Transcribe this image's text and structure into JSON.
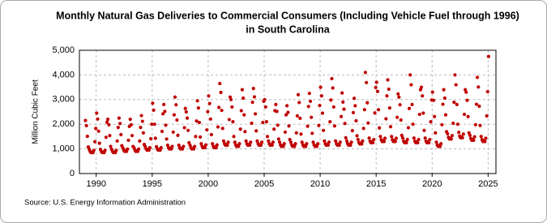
{
  "chart_data": {
    "type": "scatter",
    "title": [
      "Monthly Natural Gas Deliveries to Commercial Consumers (Including Vehicle Fuel through 1996)",
      "in South Carolina"
    ],
    "ylabel": "Million Cubic Feet",
    "source": "Source: U.S. Energy Information Administration",
    "xlim": [
      1988.5,
      2025.7
    ],
    "xticks": [
      1990,
      1995,
      2000,
      2005,
      2010,
      2015,
      2020,
      2025
    ],
    "ylim": [
      0,
      5000
    ],
    "yticks": [
      0,
      {
        "value": 1000,
        "label": "1,000"
      },
      {
        "value": 2000,
        "label": "2,000"
      },
      {
        "value": 3000,
        "label": "3,000"
      },
      {
        "value": 4000,
        "label": "4,000"
      },
      {
        "value": 5000,
        "label": "5,000"
      }
    ],
    "grid": true,
    "color": "#c00000",
    "x": [
      1989.04,
      1989.13,
      1989.21,
      1989.29,
      1989.38,
      1989.46,
      1989.54,
      1989.63,
      1989.71,
      1989.79,
      1989.88,
      1989.96,
      1990.04,
      1990.13,
      1990.21,
      1990.29,
      1990.38,
      1990.46,
      1990.54,
      1990.63,
      1990.71,
      1990.79,
      1990.88,
      1990.96,
      1991.04,
      1991.13,
      1991.21,
      1991.29,
      1991.38,
      1991.46,
      1991.54,
      1991.63,
      1991.71,
      1991.79,
      1991.88,
      1991.96,
      1992.04,
      1992.13,
      1992.21,
      1992.29,
      1992.38,
      1992.46,
      1992.54,
      1992.63,
      1992.71,
      1992.79,
      1992.88,
      1992.96,
      1993.04,
      1993.13,
      1993.21,
      1993.29,
      1993.38,
      1993.46,
      1993.54,
      1993.63,
      1993.71,
      1993.79,
      1993.88,
      1993.96,
      1994.04,
      1994.13,
      1994.21,
      1994.29,
      1994.38,
      1994.46,
      1994.54,
      1994.63,
      1994.71,
      1994.79,
      1994.88,
      1994.96,
      1995.04,
      1995.13,
      1995.21,
      1995.29,
      1995.38,
      1995.46,
      1995.54,
      1995.63,
      1995.71,
      1995.79,
      1995.88,
      1995.96,
      1996.04,
      1996.13,
      1996.21,
      1996.29,
      1996.38,
      1996.46,
      1996.54,
      1996.63,
      1996.71,
      1996.79,
      1996.88,
      1996.96,
      1997.04,
      1997.13,
      1997.21,
      1997.29,
      1997.38,
      1997.46,
      1997.54,
      1997.63,
      1997.71,
      1997.79,
      1997.88,
      1997.96,
      1998.04,
      1998.13,
      1998.21,
      1998.29,
      1998.38,
      1998.46,
      1998.54,
      1998.63,
      1998.71,
      1998.79,
      1998.88,
      1998.96,
      1999.04,
      1999.13,
      1999.21,
      1999.29,
      1999.38,
      1999.46,
      1999.54,
      1999.63,
      1999.71,
      1999.79,
      1999.88,
      1999.96,
      2000.04,
      2000.13,
      2000.21,
      2000.29,
      2000.38,
      2000.46,
      2000.54,
      2000.63,
      2000.71,
      2000.79,
      2000.88,
      2000.96,
      2001.04,
      2001.13,
      2001.21,
      2001.29,
      2001.38,
      2001.46,
      2001.54,
      2001.63,
      2001.71,
      2001.79,
      2001.88,
      2001.96,
      2002.04,
      2002.13,
      2002.21,
      2002.29,
      2002.38,
      2002.46,
      2002.54,
      2002.63,
      2002.71,
      2002.79,
      2002.88,
      2002.96,
      2003.04,
      2003.13,
      2003.21,
      2003.29,
      2003.38,
      2003.46,
      2003.54,
      2003.63,
      2003.71,
      2003.79,
      2003.88,
      2003.96,
      2004.04,
      2004.13,
      2004.21,
      2004.29,
      2004.38,
      2004.46,
      2004.54,
      2004.63,
      2004.71,
      2004.79,
      2004.88,
      2004.96,
      2005.04,
      2005.13,
      2005.21,
      2005.29,
      2005.38,
      2005.46,
      2005.54,
      2005.63,
      2005.71,
      2005.79,
      2005.88,
      2005.96,
      2006.04,
      2006.13,
      2006.21,
      2006.29,
      2006.38,
      2006.46,
      2006.54,
      2006.63,
      2006.71,
      2006.79,
      2006.88,
      2006.96,
      2007.04,
      2007.13,
      2007.21,
      2007.29,
      2007.38,
      2007.46,
      2007.54,
      2007.63,
      2007.71,
      2007.79,
      2007.88,
      2007.96,
      2008.04,
      2008.13,
      2008.21,
      2008.29,
      2008.38,
      2008.46,
      2008.54,
      2008.63,
      2008.71,
      2008.79,
      2008.88,
      2008.96,
      2009.04,
      2009.13,
      2009.21,
      2009.29,
      2009.38,
      2009.46,
      2009.54,
      2009.63,
      2009.71,
      2009.79,
      2009.88,
      2009.96,
      2010.04,
      2010.13,
      2010.21,
      2010.29,
      2010.38,
      2010.46,
      2010.54,
      2010.63,
      2010.71,
      2010.79,
      2010.88,
      2010.96,
      2011.04,
      2011.13,
      2011.21,
      2011.29,
      2011.38,
      2011.46,
      2011.54,
      2011.63,
      2011.71,
      2011.79,
      2011.88,
      2011.96,
      2012.04,
      2012.13,
      2012.21,
      2012.29,
      2012.38,
      2012.46,
      2012.54,
      2012.63,
      2012.71,
      2012.79,
      2012.88,
      2012.96,
      2013.04,
      2013.13,
      2013.21,
      2013.29,
      2013.38,
      2013.46,
      2013.54,
      2013.63,
      2013.71,
      2013.79,
      2013.88,
      2013.96,
      2014.04,
      2014.13,
      2014.21,
      2014.29,
      2014.38,
      2014.46,
      2014.54,
      2014.63,
      2014.71,
      2014.79,
      2014.88,
      2014.96,
      2015.04,
      2015.13,
      2015.21,
      2015.29,
      2015.38,
      2015.46,
      2015.54,
      2015.63,
      2015.71,
      2015.79,
      2015.88,
      2015.96,
      2016.04,
      2016.13,
      2016.21,
      2016.29,
      2016.38,
      2016.46,
      2016.54,
      2016.63,
      2016.71,
      2016.79,
      2016.88,
      2016.96,
      2017.04,
      2017.13,
      2017.21,
      2017.29,
      2017.38,
      2017.46,
      2017.54,
      2017.63,
      2017.71,
      2017.79,
      2017.88,
      2017.96,
      2018.04,
      2018.13,
      2018.21,
      2018.29,
      2018.38,
      2018.46,
      2018.54,
      2018.63,
      2018.71,
      2018.79,
      2018.88,
      2018.96,
      2019.04,
      2019.13,
      2019.21,
      2019.29,
      2019.38,
      2019.46,
      2019.54,
      2019.63,
      2019.71,
      2019.79,
      2019.88,
      2019.96,
      2020.04,
      2020.13,
      2020.21,
      2020.29,
      2020.38,
      2020.46,
      2020.54,
      2020.63,
      2020.71,
      2020.79,
      2020.88,
      2020.96,
      2021.04,
      2021.13,
      2021.21,
      2021.29,
      2021.38,
      2021.46,
      2021.54,
      2021.63,
      2021.71,
      2021.79,
      2021.88,
      2021.96,
      2022.04,
      2022.13,
      2022.21,
      2022.29,
      2022.38,
      2022.46,
      2022.54,
      2022.63,
      2022.71,
      2022.79,
      2022.88,
      2022.96,
      2023.04,
      2023.13,
      2023.21,
      2023.29,
      2023.38,
      2023.46,
      2023.54,
      2023.63,
      2023.71,
      2023.79,
      2023.88,
      2023.96,
      2024.04,
      2024.13,
      2024.21,
      2024.29,
      2024.38,
      2024.46,
      2024.54,
      2024.63,
      2024.71,
      2024.79,
      2024.88,
      2024.96,
      2025.04
    ],
    "values": [
      2150,
      1940,
      1510,
      1080,
      980,
      890,
      850,
      870,
      850,
      940,
      1290,
      1830,
      2450,
      2210,
      1720,
      1230,
      980,
      890,
      850,
      870,
      850,
      940,
      1470,
      2080,
      2200,
      1980,
      1540,
      1100,
      980,
      890,
      850,
      870,
      850,
      940,
      1320,
      1870,
      2250,
      2030,
      1580,
      1130,
      1040,
      950,
      900,
      920,
      900,
      990,
      1350,
      1910,
      2200,
      1980,
      1540,
      1100,
      1040,
      950,
      900,
      920,
      900,
      990,
      1320,
      1870,
      2350,
      2120,
      1650,
      1180,
      1090,
      1000,
      950,
      970,
      950,
      1050,
      1410,
      2000,
      2850,
      2570,
      2000,
      1430,
      1090,
      1000,
      950,
      970,
      950,
      1050,
      1710,
      2420,
      2800,
      2520,
      1960,
      1400,
      1150,
      1050,
      1000,
      1020,
      1000,
      1100,
      1680,
      2380,
      3100,
      2790,
      2170,
      1550,
      1150,
      1050,
      1000,
      1020,
      1000,
      1100,
      1860,
      2640,
      2500,
      2250,
      1750,
      1250,
      1150,
      1050,
      1000,
      1020,
      1000,
      1100,
      1500,
      2130,
      2950,
      2660,
      2070,
      1480,
      1210,
      1100,
      1050,
      1070,
      1050,
      1160,
      1770,
      2510,
      3150,
      2840,
      2210,
      1580,
      1210,
      1100,
      1050,
      1070,
      1050,
      1160,
      1890,
      2680,
      3650,
      3290,
      2560,
      1830,
      1320,
      1210,
      1150,
      1170,
      1150,
      1270,
      2190,
      3100,
      3000,
      2700,
      2100,
      1500,
      1270,
      1160,
      1100,
      1120,
      1100,
      1210,
      1800,
      2550,
      3400,
      3060,
      2380,
      1700,
      1320,
      1210,
      1150,
      1170,
      1150,
      1270,
      2040,
      2890,
      3450,
      3110,
      2420,
      1730,
      1320,
      1210,
      1150,
      1170,
      1150,
      1270,
      2070,
      2930,
      3000,
      2700,
      2100,
      1500,
      1320,
      1210,
      1150,
      1170,
      1150,
      1270,
      1800,
      2550,
      2800,
      2520,
      1960,
      1400,
      1270,
      1160,
      1100,
      1120,
      1100,
      1210,
      1680,
      2380,
      2750,
      2480,
      1930,
      1380,
      1270,
      1160,
      1100,
      1120,
      1100,
      1210,
      1650,
      2340,
      3200,
      2880,
      2240,
      1600,
      1270,
      1160,
      1100,
      1120,
      1100,
      1210,
      1920,
      2720,
      3250,
      2930,
      2280,
      1630,
      1270,
      1160,
      1100,
      1120,
      1100,
      1210,
      1950,
      2760,
      3500,
      3150,
      2450,
      1750,
      1320,
      1210,
      1150,
      1170,
      1150,
      1270,
      2100,
      2980,
      3850,
      3470,
      2700,
      1930,
      1320,
      1210,
      1150,
      1170,
      1150,
      1270,
      2310,
      3270,
      2900,
      2610,
      2030,
      1450,
      1320,
      1210,
      1150,
      1170,
      1150,
      1270,
      1740,
      2470,
      3050,
      2750,
      2140,
      1530,
      1380,
      1260,
      1200,
      1220,
      1200,
      1320,
      1830,
      2590,
      4100,
      3690,
      2870,
      2050,
      1440,
      1310,
      1250,
      1280,
      1250,
      1380,
      2460,
      3490,
      3700,
      3330,
      2590,
      1850,
      1500,
      1370,
      1300,
      1330,
      1300,
      1430,
      2220,
      3150,
      3800,
      3420,
      2660,
      1900,
      1500,
      1370,
      1300,
      1330,
      1300,
      1430,
      2280,
      3230,
      3100,
      2790,
      2170,
      1550,
      1440,
      1310,
      1250,
      1280,
      1250,
      1380,
      1860,
      2640,
      4000,
      3600,
      2800,
      2000,
      1440,
      1310,
      1250,
      1280,
      1250,
      1380,
      2400,
      3400,
      3500,
      3150,
      2450,
      1750,
      1440,
      1310,
      1250,
      1280,
      1250,
      1380,
      2100,
      2980,
      3300,
      2970,
      2310,
      1650,
      1270,
      1160,
      1100,
      1120,
      1100,
      1210,
      1980,
      2810,
      3400,
      3060,
      2380,
      1700,
      1610,
      1470,
      1400,
      1430,
      1400,
      1540,
      2040,
      2890,
      4000,
      3600,
      2800,
      2000,
      1670,
      1520,
      1450,
      1480,
      1450,
      1600,
      2400,
      3400,
      3300,
      2970,
      2310,
      1650,
      1550,
      1420,
      1350,
      1380,
      1350,
      1490,
      1980,
      2810,
      3900,
      3510,
      2730,
      1950,
      1500,
      1370,
      1300,
      1330,
      1300,
      1430,
      2340,
      3320,
      4750
    ]
  }
}
